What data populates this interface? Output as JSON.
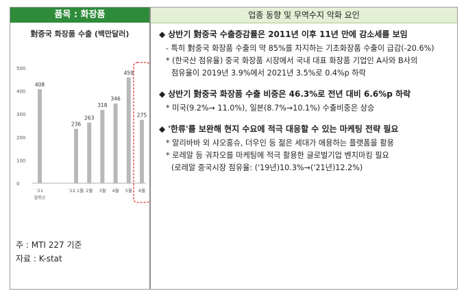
{
  "left_header": "품목 : 화장품",
  "right_header": "업종 동향 및 무역수지 악화 요인",
  "chart_data": {
    "type": "bar",
    "title": "對중국 화장품 수출 (백만달러)",
    "categories": [
      "'21",
      "'22.1월",
      "2월",
      "3월",
      "4월",
      "5월",
      "6월"
    ],
    "sublabel": "월평균",
    "values": [
      408,
      236,
      263,
      318,
      346,
      459,
      275
    ],
    "ylim": [
      0,
      500
    ],
    "yticks": [
      "0",
      "100",
      "200",
      "300",
      "400",
      "500"
    ],
    "bar_color": "#b8b8b8",
    "highlight_color": "#d9342b"
  },
  "notes": {
    "note": "주 : MTI 227 기준",
    "source": "자료 : K-stat"
  },
  "sections": [
    {
      "headline": "상반기 對중국 수출증감률은 2011년 이후 11년 만에 감소세를 보임",
      "lines": [
        {
          "text": "- 특히 對중국 화장품 수출의 약 85%를 차지하는 기초화장품 수출이 급감(-20.6%)",
          "cont": false
        },
        {
          "text": "* (한국산 점유율) 중국 화장품 시장에서 국내 대표 화장품 기업인 A사와 B사의",
          "cont": false
        },
        {
          "text": "점유율이 2019년 3.9%에서 2021년 3.5%로 0.4%p 하락",
          "cont": true
        }
      ]
    },
    {
      "headline": "상반기 對중국 화장품 수출 비중은 46.3%로 전년 대비 6.6%p 하락",
      "lines": [
        {
          "text": "* 미국(9.2%→ 11.0%), 일본(8.7%→10.1%) 수출비중은 상승",
          "cont": false
        }
      ]
    },
    {
      "headline": "'한류'를 보완해 현지 수요에 적극 대응할 수 있는 마케팅 전략 필요",
      "lines": [
        {
          "text": "* 알리바바 외 샤오홍슈, 더우인 등 젊은 세대가 애용하는 플랫폼을 활용",
          "cont": false
        },
        {
          "text": "* 로레알 등 궈차오를 마케팅에 적극 활용한 글로벌기업 벤치마킹 필요",
          "cont": false
        },
        {
          "text": "(로레알 중국시장 점유율: ('19년)10.3%→('21년)12.2%)",
          "cont": true
        }
      ]
    }
  ]
}
